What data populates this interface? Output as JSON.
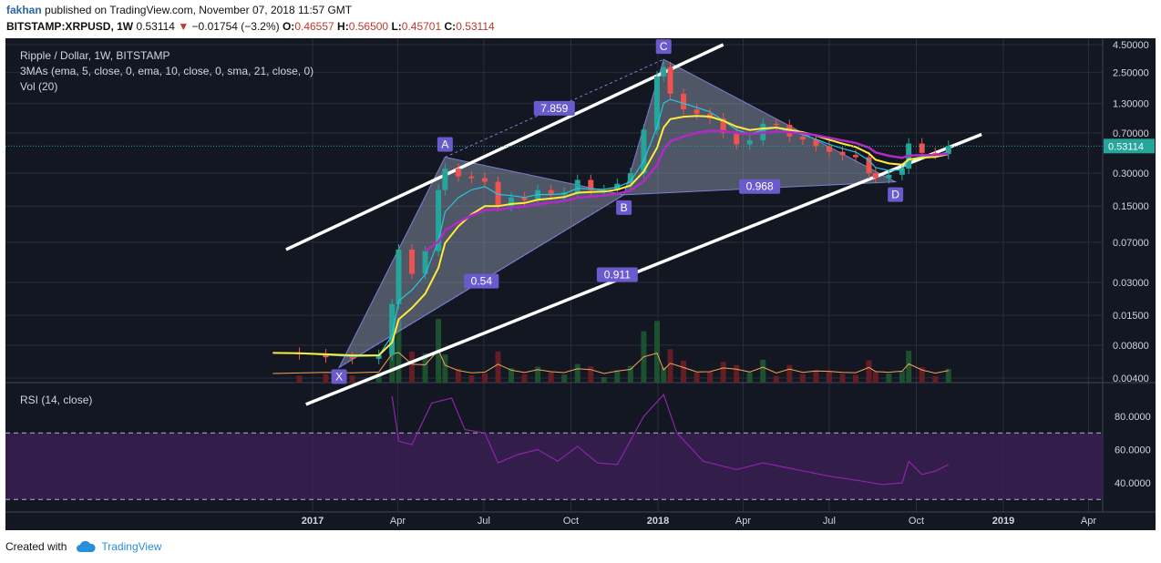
{
  "header": {
    "user": "fakhan",
    "published_text": "published on TradingView.com, November 07, 2018 11:57 GMT",
    "symbol": "BITSTAMP:XRPUSD, 1W",
    "last": "0.53114",
    "change_arrow": "▼",
    "change": "−0.01754 (−3.2%)",
    "open_label": "O:",
    "open": "0.46557",
    "high_label": "H:",
    "high": "0.56500",
    "low_label": "L:",
    "low": "0.45701",
    "close_label": "C:",
    "close": "0.53114"
  },
  "legend": {
    "title": "Ripple / Dollar, 1W, BITSTAMP",
    "mas": "3MAs (ema, 5, close, 0, ema, 10, close, 0, sma, 21, close, 0)",
    "vol": "Vol (20)",
    "rsi": "RSI (14, close)"
  },
  "footer": {
    "created_with": "Created with",
    "brand": "TradingView"
  },
  "colors": {
    "background": "#131722",
    "up": "#26a69a",
    "down": "#ef5350",
    "ema5": "#26c6da",
    "ema10": "#ffeb3b",
    "sma21": "#b02bc6",
    "rsi": "#8e24aa",
    "volume_ma": "#f5a35a",
    "pattern_label": "#6a5acd",
    "price_tag": "#26a69a"
  },
  "chart_data": {
    "type": "line",
    "title": "Ripple / Dollar, 1W, BITSTAMP",
    "scale": "log",
    "ylim": [
      0.0025,
      4.5
    ],
    "y_ticks": [
      "4.50000",
      "2.50000",
      "1.30000",
      "0.70000",
      "0.30000",
      "0.15000",
      "0.07000",
      "0.03000",
      "0.01500",
      "0.00800",
      "0.00400"
    ],
    "x_ticks": [
      {
        "label": "2017",
        "date": "2017-01-01"
      },
      {
        "label": "Apr",
        "date": "2017-04-01"
      },
      {
        "label": "Jul",
        "date": "2017-07-01"
      },
      {
        "label": "Oct",
        "date": "2017-10-01"
      },
      {
        "label": "2018",
        "date": "2018-01-01"
      },
      {
        "label": "Apr",
        "date": "2018-04-01"
      },
      {
        "label": "Jul",
        "date": "2018-07-01"
      },
      {
        "label": "Oct",
        "date": "2018-10-01"
      },
      {
        "label": "2019",
        "date": "2019-01-01"
      },
      {
        "label": "Apr",
        "date": "2019-04-01"
      }
    ],
    "last_price": "0.53114",
    "price_series": {
      "name": "XRPUSD",
      "points": [
        [
          "2016-11-20",
          0.0068
        ],
        [
          "2016-12-18",
          0.0066
        ],
        [
          "2017-01-15",
          0.0062
        ],
        [
          "2017-02-12",
          0.006
        ],
        [
          "2017-03-12",
          0.0065
        ],
        [
          "2017-03-26",
          0.019
        ],
        [
          "2017-04-02",
          0.06
        ],
        [
          "2017-04-16",
          0.036
        ],
        [
          "2017-04-30",
          0.058
        ],
        [
          "2017-05-14",
          0.21
        ],
        [
          "2017-05-21",
          0.33
        ],
        [
          "2017-06-04",
          0.28
        ],
        [
          "2017-06-18",
          0.27
        ],
        [
          "2017-07-02",
          0.25
        ],
        [
          "2017-07-16",
          0.15
        ],
        [
          "2017-07-30",
          0.18
        ],
        [
          "2017-08-13",
          0.17
        ],
        [
          "2017-08-27",
          0.21
        ],
        [
          "2017-09-10",
          0.19
        ],
        [
          "2017-09-24",
          0.2
        ],
        [
          "2017-10-08",
          0.26
        ],
        [
          "2017-10-22",
          0.21
        ],
        [
          "2017-11-05",
          0.21
        ],
        [
          "2017-11-19",
          0.24
        ],
        [
          "2017-12-03",
          0.3
        ],
        [
          "2017-12-17",
          0.75
        ],
        [
          "2017-12-31",
          2.3
        ],
        [
          "2018-01-07",
          2.8
        ],
        [
          "2018-01-14",
          1.6
        ],
        [
          "2018-01-28",
          1.15
        ],
        [
          "2018-02-11",
          1.05
        ],
        [
          "2018-02-25",
          0.95
        ],
        [
          "2018-03-11",
          0.7
        ],
        [
          "2018-03-25",
          0.55
        ],
        [
          "2018-04-08",
          0.6
        ],
        [
          "2018-04-22",
          0.85
        ],
        [
          "2018-05-06",
          0.83
        ],
        [
          "2018-05-20",
          0.65
        ],
        [
          "2018-06-03",
          0.61
        ],
        [
          "2018-06-17",
          0.53
        ],
        [
          "2018-07-01",
          0.47
        ],
        [
          "2018-07-15",
          0.44
        ],
        [
          "2018-07-29",
          0.42
        ],
        [
          "2018-08-12",
          0.3
        ],
        [
          "2018-08-19",
          0.27
        ],
        [
          "2018-09-02",
          0.29
        ],
        [
          "2018-09-16",
          0.33
        ],
        [
          "2018-09-23",
          0.56
        ],
        [
          "2018-10-07",
          0.46
        ],
        [
          "2018-10-21",
          0.45
        ],
        [
          "2018-11-04",
          0.53114
        ]
      ]
    },
    "pattern": {
      "points": [
        {
          "label": "X",
          "date": "2017-01-29",
          "value": 0.005
        },
        {
          "label": "A",
          "date": "2017-05-21",
          "value": 0.42
        },
        {
          "label": "B",
          "date": "2017-11-26",
          "value": 0.19
        },
        {
          "label": "C",
          "date": "2018-01-07",
          "value": 3.3
        },
        {
          "label": "D",
          "date": "2018-09-09",
          "value": 0.25
        }
      ],
      "ratios": [
        {
          "label": "0.54"
        },
        {
          "label": "7.859"
        },
        {
          "label": "0.968"
        },
        {
          "label": "0.911"
        }
      ]
    },
    "channel_lines": [
      {
        "start": [
          "2016-12-04",
          0.06
        ],
        "end": [
          "2018-03-11",
          4.5
        ]
      },
      {
        "start": [
          "2016-12-25",
          0.0023
        ],
        "end": [
          "2018-12-09",
          0.68
        ]
      }
    ],
    "rsi": {
      "name": "RSI (14, close)",
      "ylim": [
        30,
        90
      ],
      "y_ticks": [
        "80.0000",
        "60.0000",
        "40.0000"
      ],
      "overbought": 70,
      "oversold": 30,
      "points": [
        [
          "2017-03-26",
          92
        ],
        [
          "2017-04-02",
          65
        ],
        [
          "2017-04-16",
          63
        ],
        [
          "2017-05-07",
          88
        ],
        [
          "2017-05-28",
          91
        ],
        [
          "2017-06-11",
          72
        ],
        [
          "2017-07-02",
          70
        ],
        [
          "2017-07-16",
          52
        ],
        [
          "2017-08-06",
          57
        ],
        [
          "2017-08-27",
          60
        ],
        [
          "2017-09-17",
          53
        ],
        [
          "2017-10-08",
          62
        ],
        [
          "2017-10-29",
          52
        ],
        [
          "2017-11-19",
          51
        ],
        [
          "2017-12-17",
          80
        ],
        [
          "2018-01-07",
          93
        ],
        [
          "2018-01-21",
          70
        ],
        [
          "2018-02-18",
          53
        ],
        [
          "2018-03-25",
          48
        ],
        [
          "2018-04-22",
          52
        ],
        [
          "2018-05-27",
          48
        ],
        [
          "2018-07-01",
          44
        ],
        [
          "2018-08-05",
          41
        ],
        [
          "2018-08-26",
          39
        ],
        [
          "2018-09-16",
          40
        ],
        [
          "2018-09-23",
          53
        ],
        [
          "2018-10-07",
          45
        ],
        [
          "2018-10-21",
          47
        ],
        [
          "2018-11-04",
          51
        ]
      ]
    }
  }
}
